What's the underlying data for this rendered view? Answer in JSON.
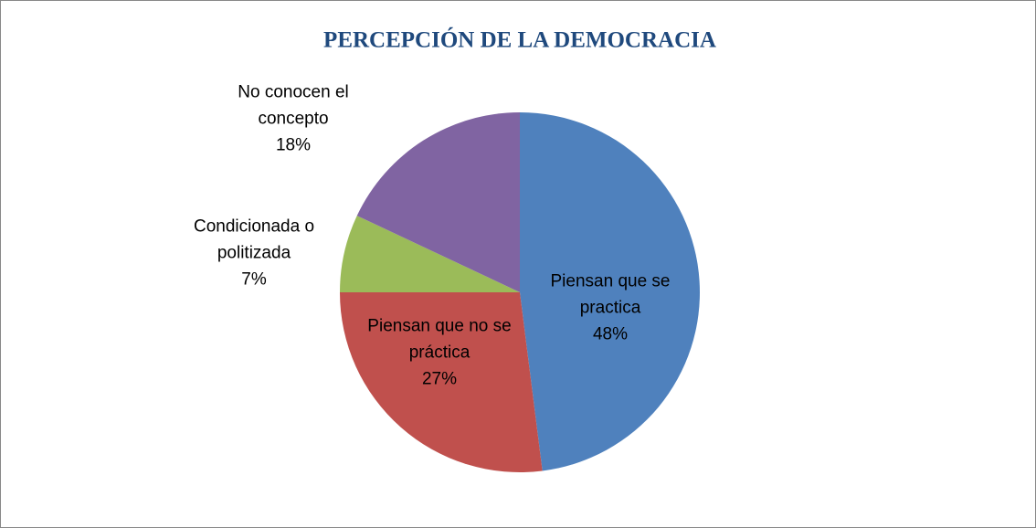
{
  "chart_data": {
    "type": "pie",
    "title": "PERCEPCIÓN DE LA DEMOCRACIA",
    "categories": [
      "Piensan que se practica",
      "Piensan que no se práctica",
      "Condicionada o politizada",
      "No conocen el concepto"
    ],
    "values": [
      48,
      27,
      7,
      18
    ],
    "value_labels": [
      "48%",
      "27%",
      "7%",
      "18%"
    ],
    "colors": [
      "#4f81bd",
      "#c0504d",
      "#9bbb59",
      "#8064a2"
    ]
  }
}
